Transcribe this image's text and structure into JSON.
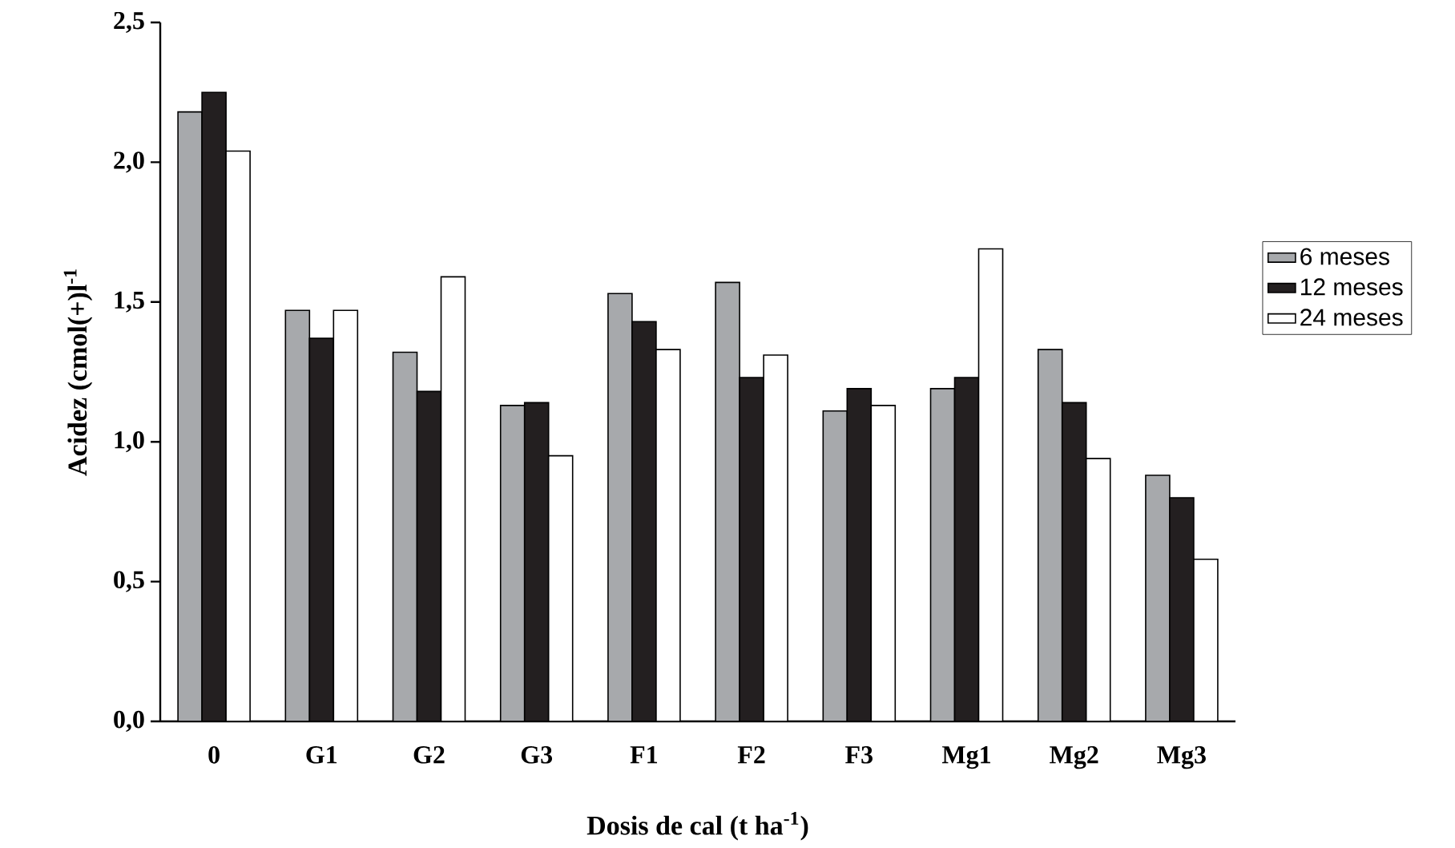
{
  "chart_data": {
    "type": "bar",
    "xlabel": "Dosis de cal (t ha$^{-1}$)",
    "ylabel": "Acidez (cmol(+)l$^{-1}$",
    "categories": [
      "0",
      "G1",
      "G2",
      "G3",
      "F1",
      "F2",
      "F3",
      "Mg1",
      "Mg2",
      "Mg3"
    ],
    "series": [
      {
        "name": "6 meses",
        "color": "#a7a9ac",
        "values": [
          2.18,
          1.47,
          1.32,
          1.13,
          1.53,
          1.57,
          1.11,
          1.19,
          1.33,
          0.88
        ]
      },
      {
        "name": "12 meses",
        "color": "#231f20",
        "values": [
          2.25,
          1.37,
          1.18,
          1.14,
          1.43,
          1.23,
          1.19,
          1.23,
          1.14,
          0.8
        ]
      },
      {
        "name": "24 meses",
        "color": "#ffffff",
        "values": [
          2.04,
          1.47,
          1.59,
          0.95,
          1.33,
          1.31,
          1.13,
          1.69,
          0.94,
          0.58
        ]
      }
    ],
    "ylim": [
      0,
      2.5
    ],
    "yticks": [
      {
        "value": 0,
        "label": "0,0"
      },
      {
        "value": 0.5,
        "label": "0,5"
      },
      {
        "value": 1,
        "label": "1,0"
      },
      {
        "value": 1.5,
        "label": "1,5"
      },
      {
        "value": 2,
        "label": "2,0"
      },
      {
        "value": 2.5,
        "label": "2,5"
      }
    ],
    "legend": "right",
    "grid": false
  }
}
